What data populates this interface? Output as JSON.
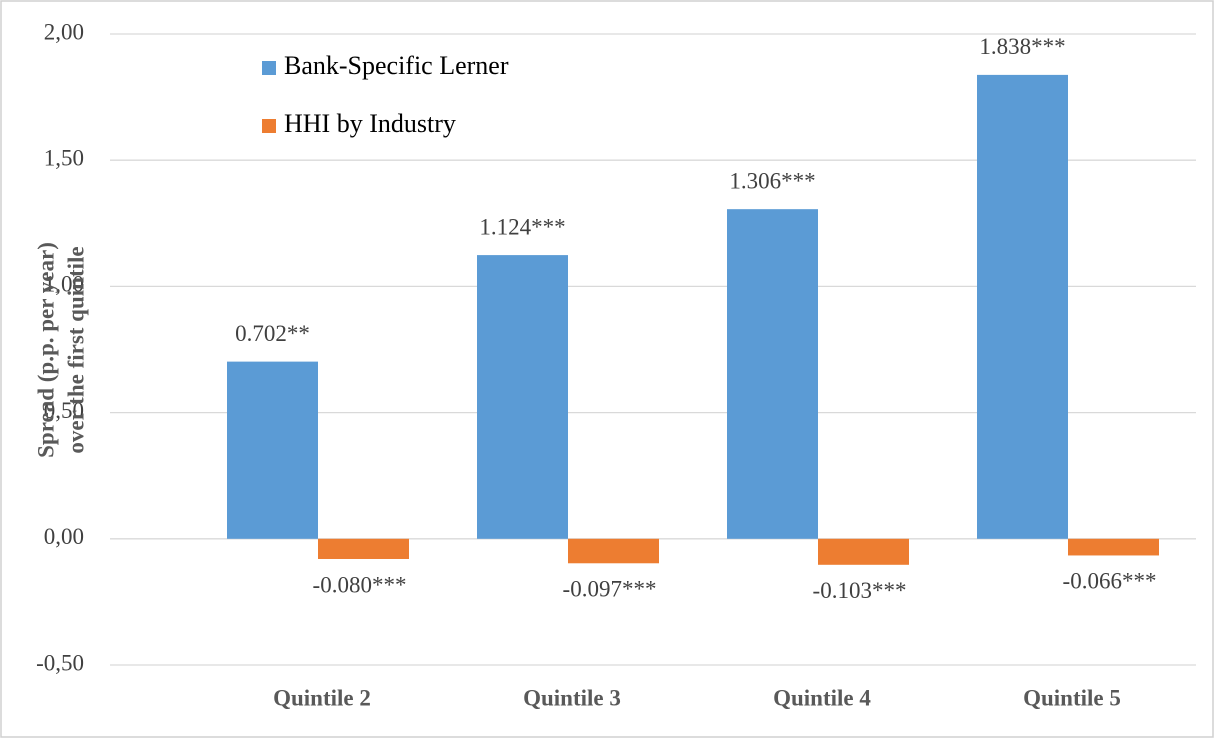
{
  "chart_data": {
    "type": "bar",
    "ylabel": [
      "Spread (p.p. per year)",
      "over the first quintile"
    ],
    "categories": [
      "Quintile 2",
      "Quintile 3",
      "Quintile 4",
      "Quintile 5"
    ],
    "series": [
      {
        "name": "Bank-Specific Lerner",
        "color": "#5b9bd5",
        "values": [
          0.702,
          1.124,
          1.306,
          1.838
        ],
        "value_labels": [
          "0.702**",
          "1.124***",
          "1.306***",
          "1.838***"
        ]
      },
      {
        "name": "HHI by Industry",
        "color": "#ed7d31",
        "values": [
          -0.08,
          -0.097,
          -0.103,
          -0.066
        ],
        "value_labels": [
          "-0.080***",
          "-0.097***",
          "-0.103***",
          "-0.066***"
        ]
      }
    ],
    "ylim": [
      -0.5,
      2.0
    ],
    "yticks": [
      {
        "value": -0.5,
        "label": "-0,50"
      },
      {
        "value": 0,
        "label": "0,00"
      },
      {
        "value": 0.5,
        "label": "0,50"
      },
      {
        "value": 1.0,
        "label": "1,00"
      },
      {
        "value": 1.5,
        "label": "1,50"
      },
      {
        "value": 2.0,
        "label": "2,00"
      }
    ],
    "grid": true,
    "legend": "top-left"
  }
}
